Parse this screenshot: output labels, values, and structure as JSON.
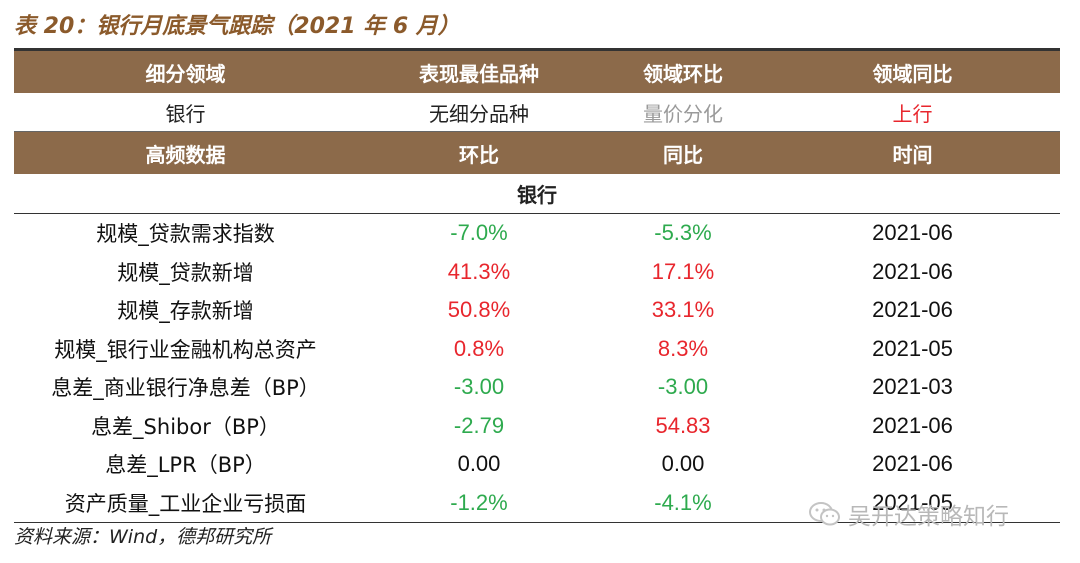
{
  "title": "表 20：银行月底景气跟踪（2021 年 6 月）",
  "colors": {
    "header_bg": "#8C6A4A",
    "green": "#2EAA4E",
    "red": "#E8262D",
    "gray": "#9A9A9A",
    "title": "#8B5A2B"
  },
  "summary_header": [
    "细分领域",
    "表现最佳品种",
    "领域环比",
    "领域同比"
  ],
  "summary_row": {
    "sector": "银行",
    "best": "无细分品种",
    "mom": "量价分化",
    "mom_color": "#9A9A9A",
    "yoy": "上行",
    "yoy_color": "#E8262D"
  },
  "data_header": [
    "高频数据",
    "环比",
    "同比",
    "时间"
  ],
  "section_label": "银行",
  "rows": [
    {
      "name": "规模_贷款需求指数",
      "mom": "-7.0%",
      "mom_color": "#2EAA4E",
      "yoy": "-5.3%",
      "yoy_color": "#2EAA4E",
      "date": "2021-06"
    },
    {
      "name": "规模_贷款新增",
      "mom": "41.3%",
      "mom_color": "#E8262D",
      "yoy": "17.1%",
      "yoy_color": "#E8262D",
      "date": "2021-06"
    },
    {
      "name": "规模_存款新增",
      "mom": "50.8%",
      "mom_color": "#E8262D",
      "yoy": "33.1%",
      "yoy_color": "#E8262D",
      "date": "2021-06"
    },
    {
      "name": "规模_银行业金融机构总资产",
      "mom": "0.8%",
      "mom_color": "#E8262D",
      "yoy": "8.3%",
      "yoy_color": "#E8262D",
      "date": "2021-05"
    },
    {
      "name": "息差_商业银行净息差（BP）",
      "mom": "-3.00",
      "mom_color": "#2EAA4E",
      "yoy": "-3.00",
      "yoy_color": "#2EAA4E",
      "date": "2021-03"
    },
    {
      "name": "息差_Shibor（BP）",
      "mom": "-2.79",
      "mom_color": "#2EAA4E",
      "yoy": "54.83",
      "yoy_color": "#E8262D",
      "date": "2021-06"
    },
    {
      "name": "息差_LPR（BP）",
      "mom": "0.00",
      "mom_color": "#111111",
      "yoy": "0.00",
      "yoy_color": "#111111",
      "date": "2021-06"
    },
    {
      "name": "资产质量_工业企业亏损面",
      "mom": "-1.2%",
      "mom_color": "#2EAA4E",
      "yoy": "-4.1%",
      "yoy_color": "#2EAA4E",
      "date": "2021-05"
    }
  ],
  "source": "资料来源：Wind，德邦研究所",
  "watermark": {
    "icon": "wechat-icon",
    "text": "吴开达策略知行"
  }
}
